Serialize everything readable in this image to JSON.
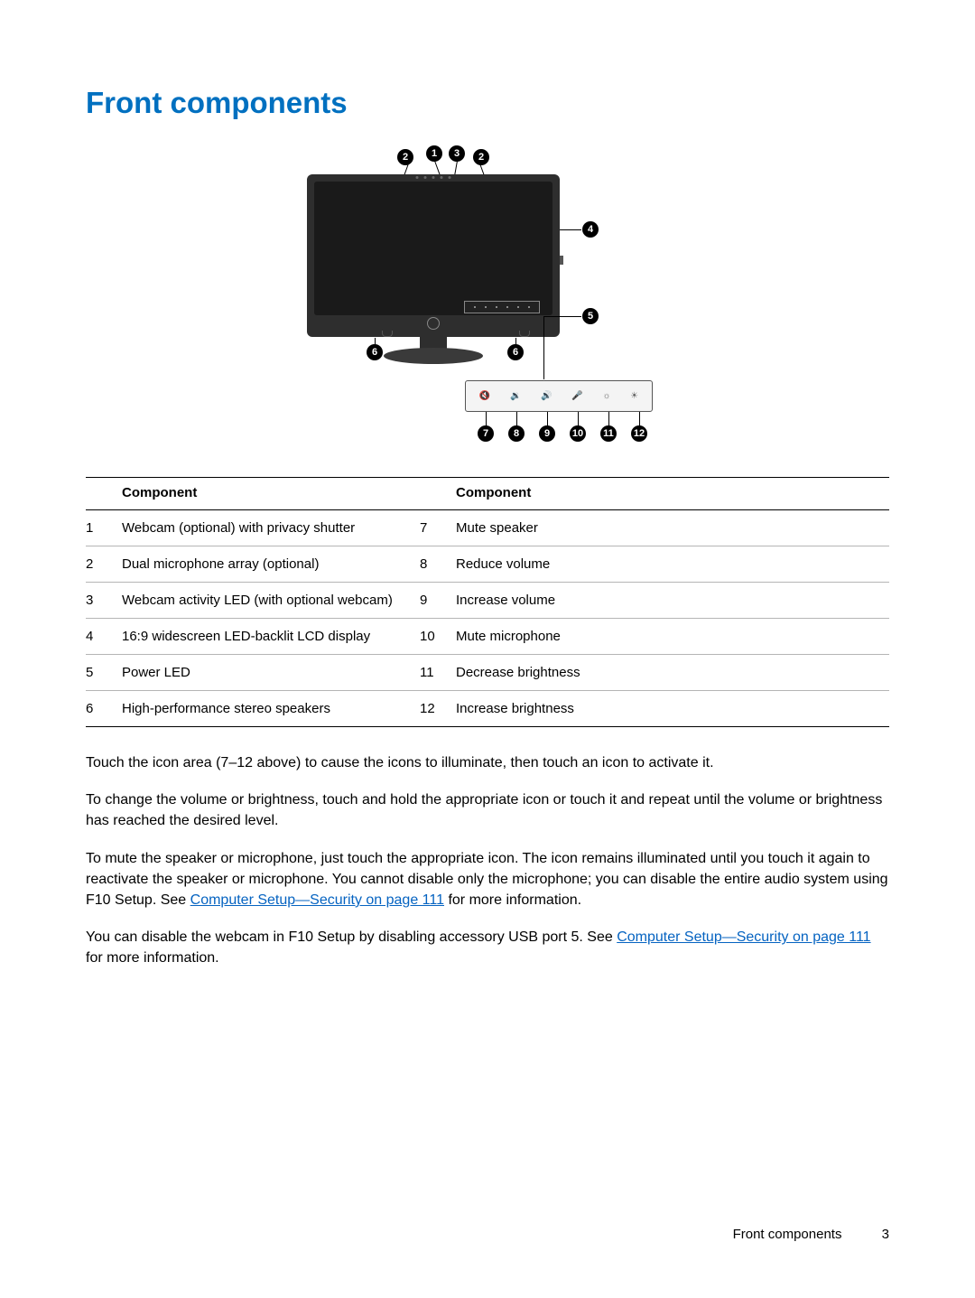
{
  "heading": "Front components",
  "callouts": {
    "c1": "1",
    "c2": "2",
    "c3": "3",
    "c4": "4",
    "c5": "5",
    "c6": "6",
    "c7": "7",
    "c8": "8",
    "c9": "9",
    "c10": "10",
    "c11": "11",
    "c12": "12"
  },
  "table": {
    "header_left": "Component",
    "header_right": "Component",
    "rows": [
      {
        "n1": "1",
        "d1": "Webcam (optional) with privacy shutter",
        "n2": "7",
        "d2": "Mute speaker"
      },
      {
        "n1": "2",
        "d1": "Dual microphone array (optional)",
        "n2": "8",
        "d2": "Reduce volume"
      },
      {
        "n1": "3",
        "d1": "Webcam activity LED (with optional webcam)",
        "n2": "9",
        "d2": "Increase volume"
      },
      {
        "n1": "4",
        "d1": "16:9 widescreen LED-backlit LCD display",
        "n2": "10",
        "d2": "Mute microphone"
      },
      {
        "n1": "5",
        "d1": "Power LED",
        "n2": "11",
        "d2": "Decrease brightness"
      },
      {
        "n1": "6",
        "d1": "High-performance stereo speakers",
        "n2": "12",
        "d2": "Increase brightness"
      }
    ]
  },
  "paragraphs": {
    "p1": "Touch the icon area (7–12 above) to cause the icons to illuminate, then touch an icon to activate it.",
    "p2": "To change the volume or brightness, touch and hold the appropriate icon or touch it and repeat until the volume or brightness has reached the desired level.",
    "p3a": "To mute the speaker or microphone, just touch the appropriate icon. The icon remains illuminated until you touch it again to reactivate the speaker or microphone. You cannot disable only the microphone; you can disable the entire audio system using F10 Setup. See ",
    "p3_link": "Computer Setup—Security on page 111",
    "p3b": " for more information.",
    "p4a": "You can disable the webcam in F10 Setup by disabling accessory USB port 5. See ",
    "p4_link": "Computer Setup—Security on page 111",
    "p4b": " for more information."
  },
  "footer": {
    "label": "Front components",
    "page": "3"
  },
  "colors": {
    "heading": "#0070c0",
    "link": "#0563c1",
    "monitor_body": "#2e2e2e",
    "screen": "#1a1a1a",
    "rule": "#000000",
    "row_rule": "#b5b5b5"
  }
}
